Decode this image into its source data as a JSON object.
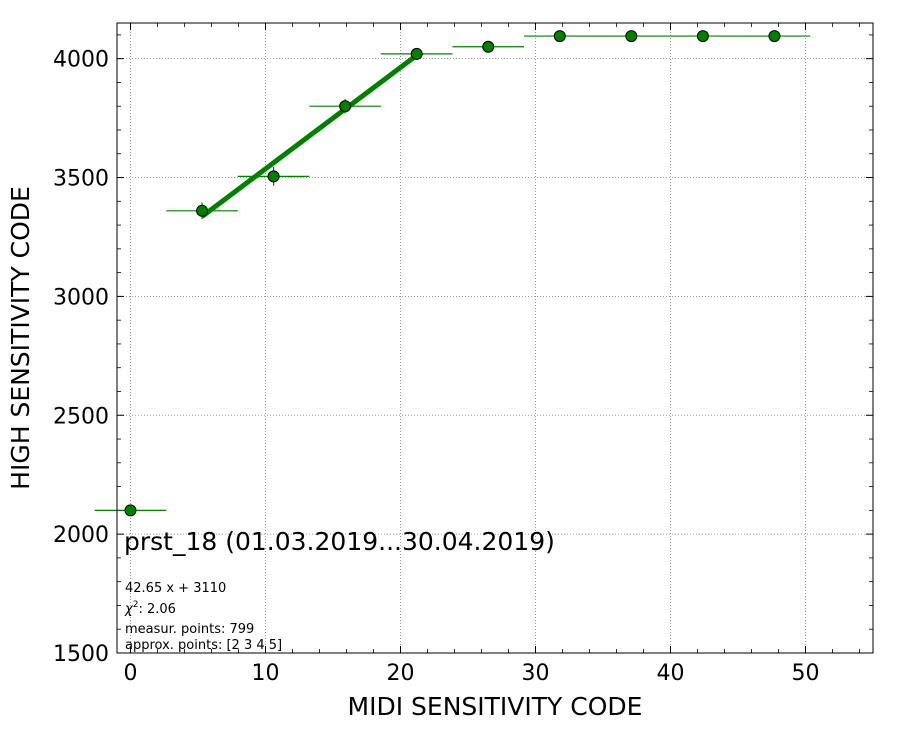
{
  "chart_data": {
    "type": "scatter",
    "xlabel": "MIDI SENSITIVITY CODE",
    "ylabel": "HIGH SENSITIVITY CODE",
    "xlim": [
      -1.0,
      55.0
    ],
    "ylim": [
      1500,
      4150
    ],
    "x_ticks": [
      0,
      10,
      20,
      30,
      40,
      50
    ],
    "y_ticks": [
      1500,
      2000,
      2500,
      3000,
      3500,
      4000
    ],
    "x_tick_labels": [
      "0",
      "10",
      "20",
      "30",
      "40",
      "50"
    ],
    "y_tick_labels": [
      "1500",
      "2000",
      "2500",
      "3000",
      "3500",
      "4000"
    ],
    "grid": true,
    "colors": {
      "marker": "#008000",
      "fit_line": "#008000",
      "grid": "#808080"
    },
    "points": [
      {
        "x": 0.0,
        "y": 2100,
        "xerr": 2.65,
        "yerr": 0
      },
      {
        "x": 5.3,
        "y": 3360,
        "xerr": 2.65,
        "yerr": 35
      },
      {
        "x": 10.6,
        "y": 3505,
        "xerr": 2.65,
        "yerr": 40
      },
      {
        "x": 15.9,
        "y": 3800,
        "xerr": 2.65,
        "yerr": 30
      },
      {
        "x": 21.2,
        "y": 4020,
        "xerr": 2.65,
        "yerr": 0
      },
      {
        "x": 26.5,
        "y": 4050,
        "xerr": 2.65,
        "yerr": 0
      },
      {
        "x": 31.8,
        "y": 4095,
        "xerr": 2.65,
        "yerr": 0
      },
      {
        "x": 37.1,
        "y": 4095,
        "xerr": 2.65,
        "yerr": 0
      },
      {
        "x": 42.4,
        "y": 4095,
        "xerr": 2.65,
        "yerr": 0
      },
      {
        "x": 47.7,
        "y": 4095,
        "xerr": 2.65,
        "yerr": 0
      }
    ],
    "fit": {
      "slope": 42.65,
      "intercept": 3110,
      "x_range": [
        5.3,
        21.2
      ]
    },
    "annotations": {
      "title": "prst_18 (01.03.2019...30.04.2019)",
      "equation": "42.65 x + 3110",
      "chi2_label": "χ",
      "chi2_sup": "2",
      "chi2_value": ": 2.06",
      "measur_points": "measur. points: 799",
      "approx_points": "approx. points: [2 3 4 5]"
    }
  }
}
